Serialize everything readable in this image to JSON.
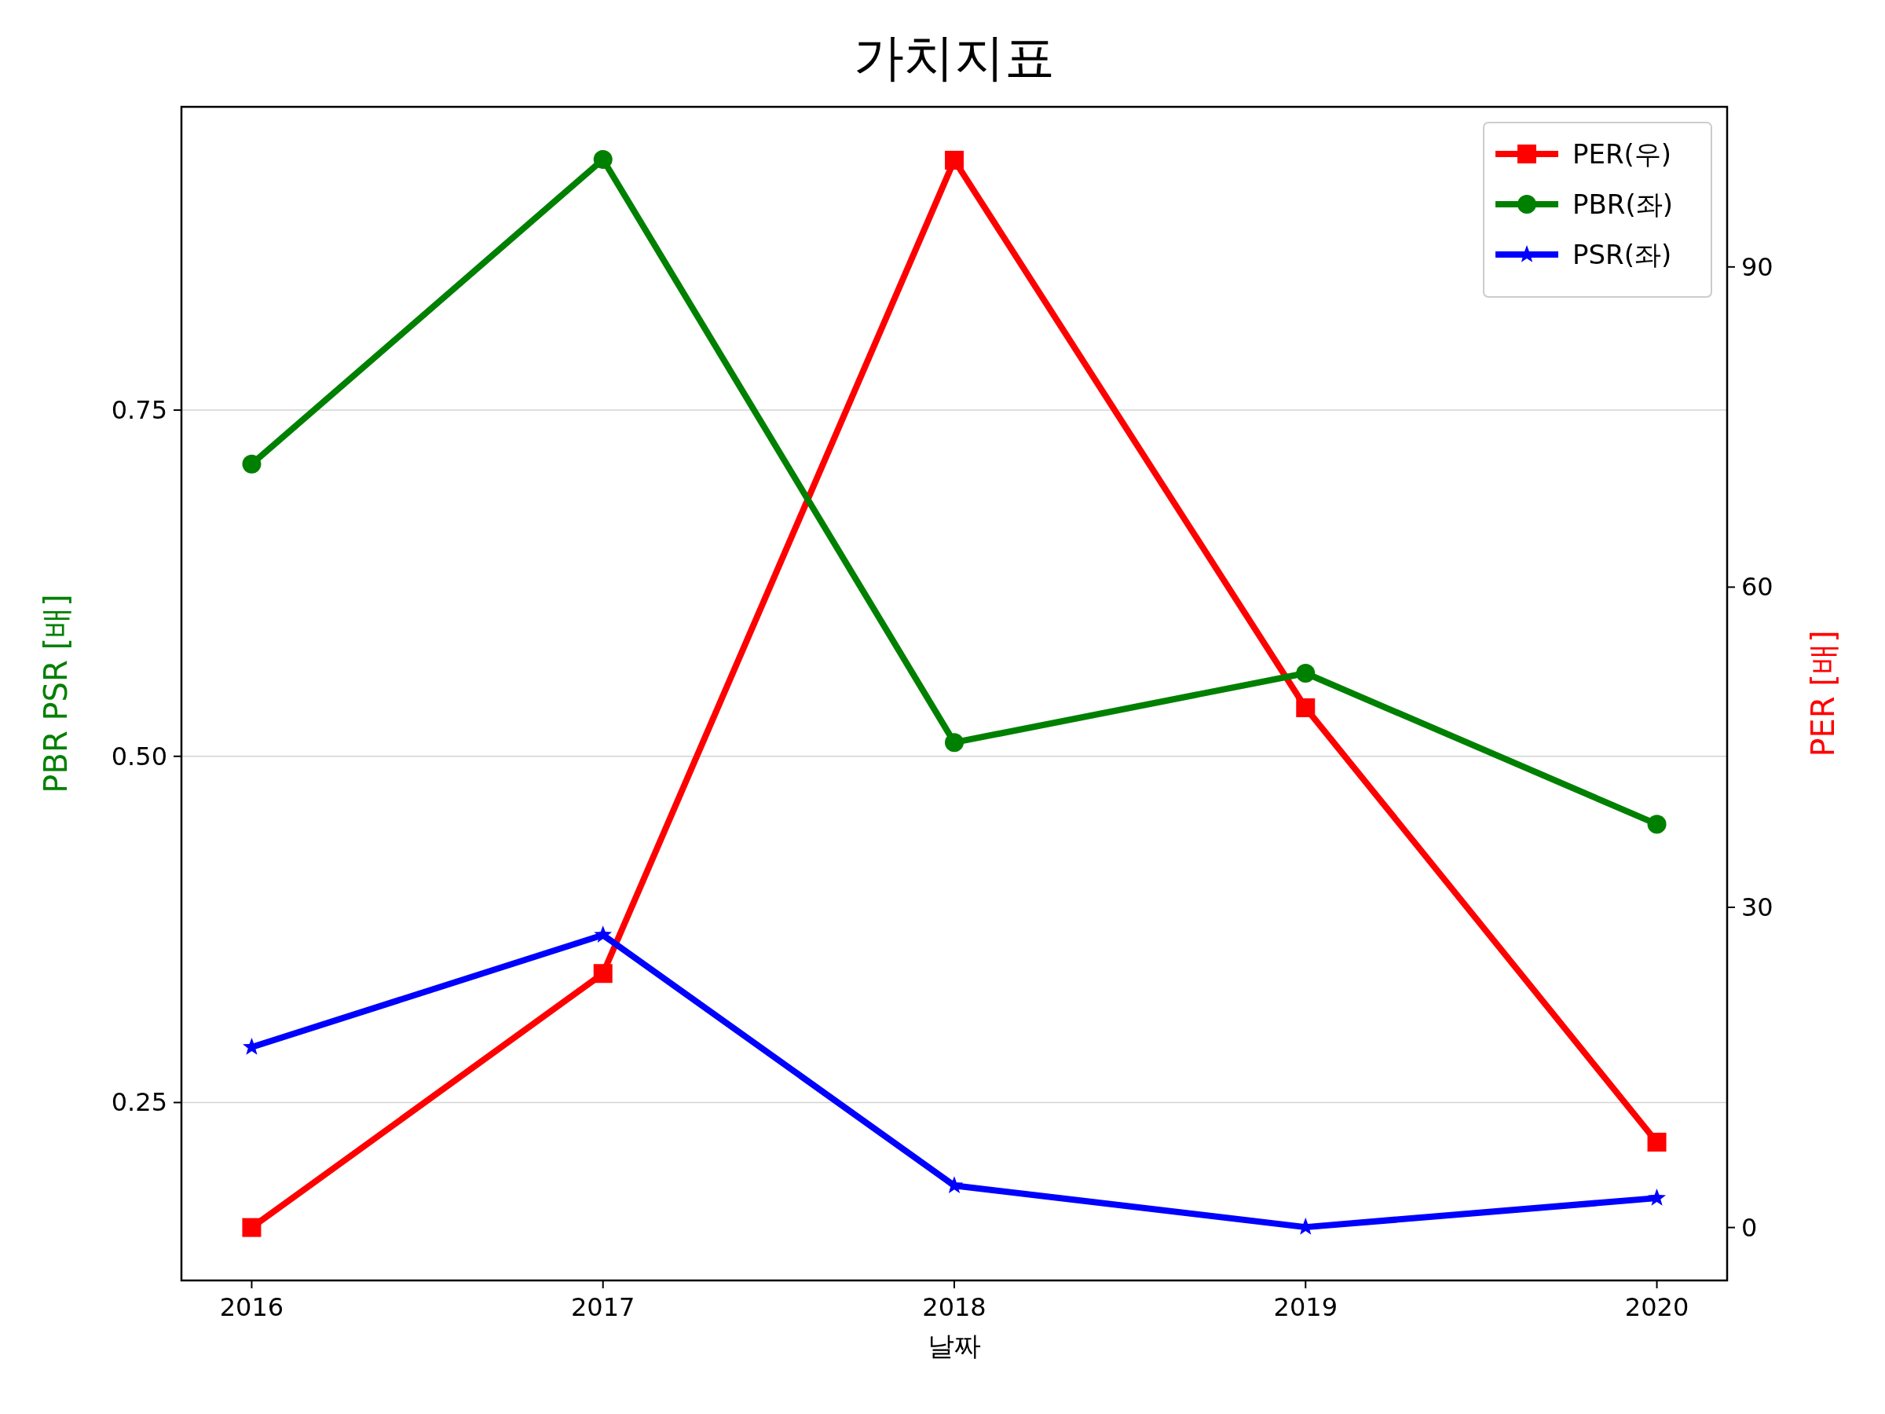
{
  "chart_data": {
    "type": "line",
    "title": "가치지표",
    "xlabel": "날짜",
    "ylabel": "PBR PSR [배]",
    "y2label": "PER [배]",
    "x": [
      2016,
      2017,
      2018,
      2019,
      2020
    ],
    "xlim": [
      2015.8,
      2020.2
    ],
    "xticks": [
      2016,
      2017,
      2018,
      2019,
      2020
    ],
    "ylim": [
      0.1215,
      0.969
    ],
    "yticks": [
      0.25,
      {
        "value": 0.5,
        "label": "0.50"
      },
      0.75
    ],
    "y2lim": [
      -4.96,
      105
    ],
    "y2ticks": [
      0,
      30,
      60,
      90
    ],
    "grid": "y",
    "legend": "top right",
    "series": [
      {
        "name": "PER(우)",
        "color": "#ff0000",
        "axis": "y2",
        "marker": "square",
        "values": [
          0,
          23.8,
          100,
          48.7,
          8.0
        ]
      },
      {
        "name": "PBR(좌)",
        "color": "#008000",
        "axis": "y",
        "marker": "circle",
        "values": [
          0.711,
          0.931,
          0.51,
          0.56,
          0.451
        ]
      },
      {
        "name": "PSR(좌)",
        "color": "#0000ff",
        "axis": "y",
        "marker": "star",
        "values": [
          0.29,
          0.371,
          0.19,
          0.16,
          0.181
        ]
      }
    ]
  }
}
